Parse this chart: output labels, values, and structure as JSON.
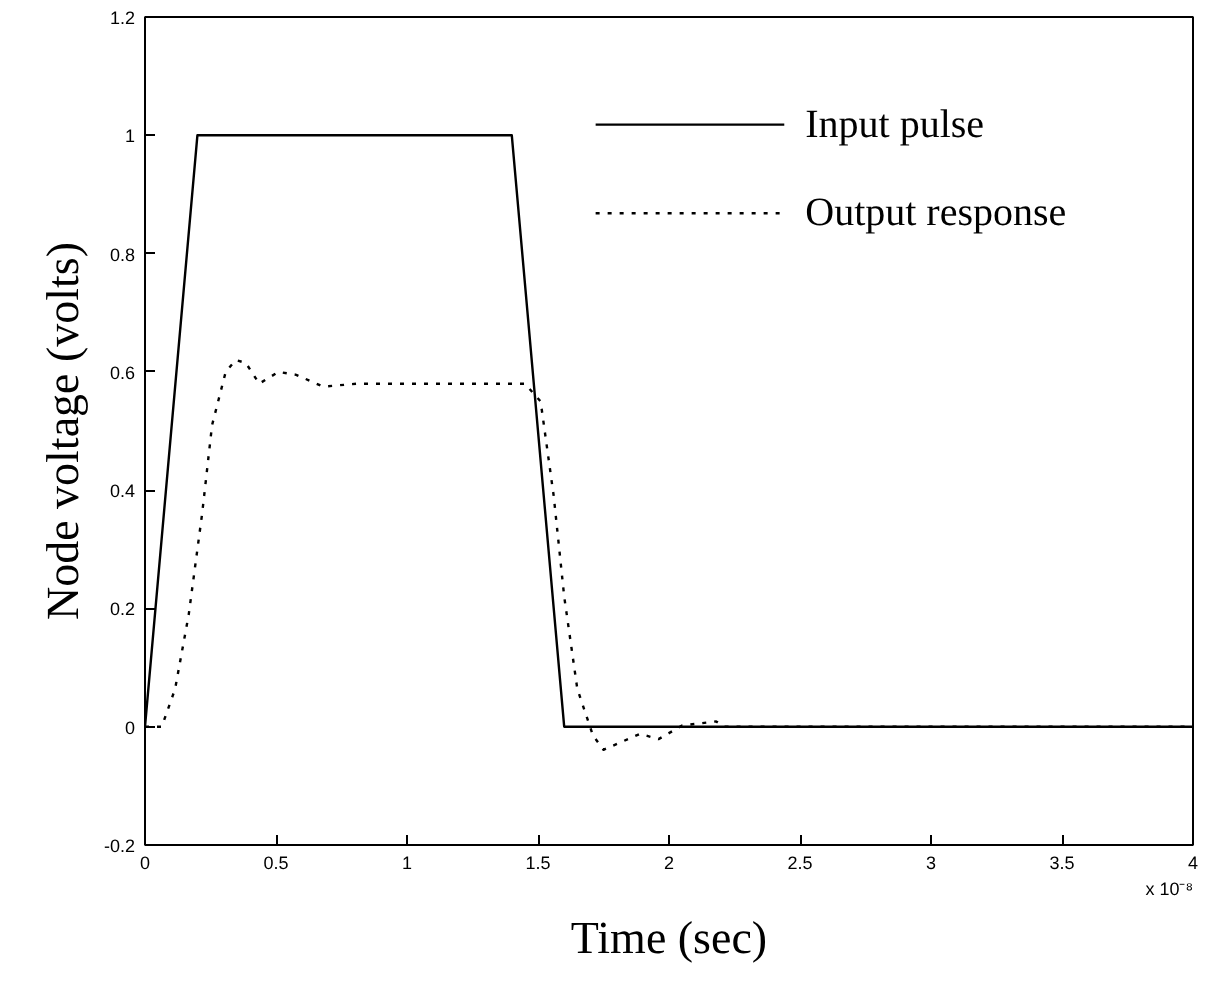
{
  "chart_data": {
    "type": "line",
    "xlabel": "Time (sec)",
    "ylabel": "Node voltage (volts)",
    "xlim": [
      0,
      4
    ],
    "ylim": [
      -0.2,
      1.2
    ],
    "xticks": [
      0,
      0.5,
      1,
      1.5,
      2,
      2.5,
      3,
      3.5,
      4
    ],
    "yticks": [
      -0.2,
      0,
      0.2,
      0.4,
      0.6,
      0.8,
      1,
      1.2
    ],
    "grid": false,
    "legend": "top right",
    "marker": "none",
    "annotations": [
      "x 10⁻⁸"
    ],
    "series": [
      {
        "name": "Input pulse",
        "color": "#000000",
        "line_style": "solid",
        "x": [
          0,
          0.2,
          1.4,
          1.6,
          4
        ],
        "values": [
          0,
          1,
          1,
          0,
          0
        ]
      },
      {
        "name": "Output response",
        "color": "#000000",
        "line_style": "dotted",
        "x": [
          0,
          0.064,
          0.115,
          0.167,
          0.218,
          0.256,
          0.308,
          0.346,
          0.385,
          0.436,
          0.51,
          0.577,
          0.68,
          0.81,
          1.45,
          1.51,
          1.56,
          1.6,
          1.65,
          1.71,
          1.75,
          1.89,
          1.96,
          2.05,
          2.18,
          2.21,
          4
        ],
        "values": [
          0,
          0,
          0.064,
          0.19,
          0.36,
          0.51,
          0.6,
          0.62,
          0.615,
          0.58,
          0.6,
          0.595,
          0.575,
          0.58,
          0.58,
          0.55,
          0.39,
          0.22,
          0.064,
          -0.015,
          -0.039,
          -0.012,
          -0.021,
          0.002,
          0.009,
          0,
          0
        ]
      }
    ]
  }
}
